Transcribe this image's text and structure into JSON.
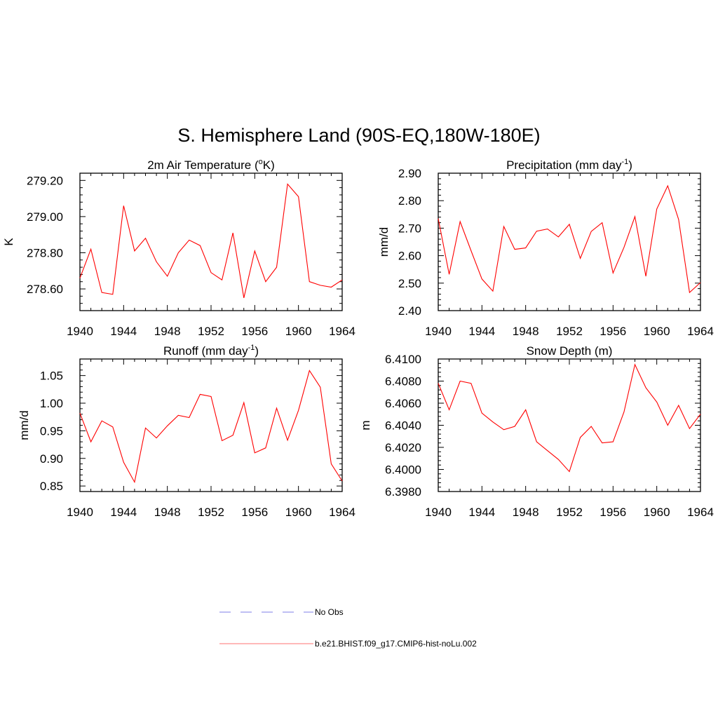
{
  "figure": {
    "title": "S. Hemisphere Land (90S-EQ,180W-180E)"
  },
  "chart_data": [
    {
      "type": "line",
      "title": "2m Air Temperature (°K)",
      "title_base": "2m Air Temperature (",
      "title_sup": "o",
      "title_tail": "K)",
      "xlabel": "",
      "ylabel": "K",
      "xlim": [
        1940,
        1964
      ],
      "ylim": [
        278.48,
        279.24
      ],
      "xticks": [
        1940,
        1944,
        1948,
        1952,
        1956,
        1960,
        1964
      ],
      "yticks": [
        278.6,
        278.8,
        279.0,
        279.2
      ],
      "ytick_labels": [
        "278.60",
        "278.80",
        "279.00",
        "279.20"
      ],
      "grid": false,
      "series": [
        {
          "name": "b.e21.BHIST.f09_g17.CMIP6-hist-noLu.002",
          "color": "#ff0000",
          "x": [
            1940,
            1941,
            1942,
            1943,
            1944,
            1945,
            1946,
            1947,
            1948,
            1949,
            1950,
            1951,
            1952,
            1953,
            1954,
            1955,
            1956,
            1957,
            1958,
            1959,
            1960,
            1961,
            1962,
            1963,
            1964
          ],
          "y": [
            278.66,
            278.82,
            278.58,
            278.57,
            279.06,
            278.81,
            278.88,
            278.75,
            278.67,
            278.8,
            278.87,
            278.84,
            278.69,
            278.65,
            278.91,
            278.55,
            278.81,
            278.64,
            278.72,
            279.18,
            279.11,
            278.64,
            278.62,
            278.61,
            278.65
          ]
        }
      ]
    },
    {
      "type": "line",
      "title": "Precipitation (mm day-1)",
      "title_base": "Precipitation (mm day",
      "title_sup": "-1",
      "title_tail": ")",
      "xlabel": "",
      "ylabel": "mm/d",
      "xlim": [
        1940,
        1964
      ],
      "ylim": [
        2.4,
        2.9
      ],
      "xticks": [
        1940,
        1944,
        1948,
        1952,
        1956,
        1960,
        1964
      ],
      "yticks": [
        2.4,
        2.5,
        2.6,
        2.7,
        2.8,
        2.9
      ],
      "ytick_labels": [
        "2.40",
        "2.50",
        "2.60",
        "2.70",
        "2.80",
        "2.90"
      ],
      "grid": false,
      "series": [
        {
          "name": "b.e21.BHIST.f09_g17.CMIP6-hist-noLu.002",
          "color": "#ff0000",
          "x": [
            1940,
            1941,
            1942,
            1943,
            1944,
            1945,
            1946,
            1947,
            1948,
            1949,
            1950,
            1951,
            1952,
            1953,
            1954,
            1955,
            1956,
            1957,
            1958,
            1959,
            1960,
            1961,
            1962,
            1963,
            1964
          ],
          "y": [
            2.735,
            2.532,
            2.724,
            2.618,
            2.515,
            2.471,
            2.706,
            2.623,
            2.628,
            2.689,
            2.697,
            2.668,
            2.714,
            2.59,
            2.688,
            2.72,
            2.537,
            2.63,
            2.742,
            2.525,
            2.77,
            2.854,
            2.732,
            2.466,
            2.502
          ]
        }
      ]
    },
    {
      "type": "line",
      "title": "Runoff (mm day-1)",
      "title_base": "Runoff (mm day",
      "title_sup": "-1",
      "title_tail": ")",
      "xlabel": "",
      "ylabel": "mm/d",
      "xlim": [
        1940,
        1964
      ],
      "ylim": [
        0.84,
        1.08
      ],
      "xticks": [
        1940,
        1944,
        1948,
        1952,
        1956,
        1960,
        1964
      ],
      "yticks": [
        0.85,
        0.9,
        0.95,
        1.0,
        1.05
      ],
      "ytick_labels": [
        "0.85",
        "0.90",
        "0.95",
        "1.00",
        "1.05"
      ],
      "grid": false,
      "series": [
        {
          "name": "b.e21.BHIST.f09_g17.CMIP6-hist-noLu.002",
          "color": "#ff0000",
          "x": [
            1940,
            1941,
            1942,
            1943,
            1944,
            1945,
            1946,
            1947,
            1948,
            1949,
            1950,
            1951,
            1952,
            1953,
            1954,
            1955,
            1956,
            1957,
            1958,
            1959,
            1960,
            1961,
            1962,
            1963,
            1964
          ],
          "y": [
            0.982,
            0.93,
            0.968,
            0.957,
            0.893,
            0.857,
            0.955,
            0.937,
            0.959,
            0.978,
            0.974,
            1.016,
            1.012,
            0.932,
            0.942,
            1.001,
            0.91,
            0.919,
            0.991,
            0.933,
            0.987,
            1.059,
            1.029,
            0.89,
            0.859
          ]
        }
      ]
    },
    {
      "type": "line",
      "title": "Snow Depth (m)",
      "title_base": "Snow Depth (m)",
      "title_sup": "",
      "title_tail": "",
      "xlabel": "",
      "ylabel": "m",
      "xlim": [
        1940,
        1964
      ],
      "ylim": [
        6.398,
        6.41
      ],
      "xticks": [
        1940,
        1944,
        1948,
        1952,
        1956,
        1960,
        1964
      ],
      "yticks": [
        6.398,
        6.4,
        6.402,
        6.404,
        6.406,
        6.408,
        6.41
      ],
      "ytick_labels": [
        "6.3980",
        "6.4000",
        "6.4020",
        "6.4040",
        "6.4060",
        "6.4080",
        "6.4100"
      ],
      "grid": false,
      "series": [
        {
          "name": "b.e21.BHIST.f09_g17.CMIP6-hist-noLu.002",
          "color": "#ff0000",
          "x": [
            1940,
            1941,
            1942,
            1943,
            1944,
            1945,
            1946,
            1947,
            1948,
            1949,
            1950,
            1951,
            1952,
            1953,
            1954,
            1955,
            1956,
            1957,
            1958,
            1959,
            1960,
            1961,
            1962,
            1963,
            1964
          ],
          "y": [
            6.4078,
            6.4054,
            6.408,
            6.4078,
            6.4051,
            6.4043,
            6.4036,
            6.4039,
            6.4054,
            6.4025,
            6.4017,
            6.4009,
            6.3998,
            6.4029,
            6.4039,
            6.4024,
            6.4025,
            6.4052,
            6.4095,
            6.4074,
            6.4061,
            6.404,
            6.4058,
            6.4037,
            6.405
          ]
        }
      ]
    }
  ],
  "legend": {
    "placement": "bottom-center",
    "entries": [
      {
        "label": "No Obs",
        "color": "#9999ee",
        "style": "dashed"
      },
      {
        "label": "b.e21.BHIST.f09_g17.CMIP6-hist-noLu.002",
        "color": "#ff0000",
        "style": "solid"
      }
    ]
  }
}
